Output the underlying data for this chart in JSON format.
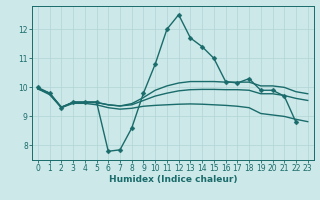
{
  "xlabel": "Humidex (Indice chaleur)",
  "xlim": [
    -0.5,
    23.5
  ],
  "ylim": [
    7.5,
    12.8
  ],
  "yticks": [
    8,
    9,
    10,
    11,
    12
  ],
  "xticks": [
    0,
    1,
    2,
    3,
    4,
    5,
    6,
    7,
    8,
    9,
    10,
    11,
    12,
    13,
    14,
    15,
    16,
    17,
    18,
    19,
    20,
    21,
    22,
    23
  ],
  "bg_color": "#cce8e8",
  "line_color": "#1a6b6b",
  "grid_color": "#b0d4d4",
  "lines": [
    {
      "x": [
        0,
        1,
        2,
        3,
        4,
        5,
        6,
        7,
        8,
        9,
        10,
        11,
        12,
        13,
        14,
        15,
        16,
        17,
        18,
        19,
        20,
        21,
        22
      ],
      "y": [
        10.0,
        9.8,
        9.3,
        9.5,
        9.5,
        9.5,
        7.8,
        7.85,
        8.6,
        9.8,
        10.8,
        12.0,
        12.5,
        11.7,
        11.4,
        11.0,
        10.2,
        10.15,
        10.3,
        9.9,
        9.9,
        9.7,
        8.8
      ],
      "marker": "D",
      "markersize": 2.5,
      "linewidth": 1.0
    },
    {
      "x": [
        0,
        1,
        2,
        3,
        4,
        5,
        6,
        7,
        8,
        9,
        10,
        11,
        12,
        13,
        14,
        15,
        16,
        17,
        18,
        19,
        20,
        21,
        22,
        23
      ],
      "y": [
        9.95,
        9.75,
        9.3,
        9.45,
        9.45,
        9.4,
        9.3,
        9.25,
        9.28,
        9.35,
        9.38,
        9.4,
        9.42,
        9.43,
        9.42,
        9.4,
        9.38,
        9.35,
        9.3,
        9.1,
        9.05,
        9.0,
        8.9,
        8.82
      ],
      "marker": null,
      "markersize": 0,
      "linewidth": 1.0
    },
    {
      "x": [
        0,
        1,
        2,
        3,
        4,
        5,
        6,
        7,
        8,
        9,
        10,
        11,
        12,
        13,
        14,
        15,
        16,
        17,
        18,
        19,
        20,
        21,
        22,
        23
      ],
      "y": [
        9.95,
        9.8,
        9.32,
        9.48,
        9.48,
        9.48,
        9.4,
        9.36,
        9.4,
        9.55,
        9.7,
        9.8,
        9.88,
        9.92,
        9.93,
        9.93,
        9.92,
        9.92,
        9.9,
        9.78,
        9.78,
        9.72,
        9.62,
        9.55
      ],
      "marker": null,
      "markersize": 0,
      "linewidth": 1.0
    },
    {
      "x": [
        0,
        1,
        2,
        3,
        4,
        5,
        6,
        7,
        8,
        9,
        10,
        11,
        12,
        13,
        14,
        15,
        16,
        17,
        18,
        19,
        20,
        21,
        22,
        23
      ],
      "y": [
        9.95,
        9.8,
        9.32,
        9.48,
        9.48,
        9.48,
        9.4,
        9.36,
        9.44,
        9.65,
        9.9,
        10.05,
        10.15,
        10.2,
        10.2,
        10.2,
        10.18,
        10.18,
        10.18,
        10.05,
        10.05,
        10.0,
        9.85,
        9.78
      ],
      "marker": null,
      "markersize": 0,
      "linewidth": 1.0
    }
  ]
}
